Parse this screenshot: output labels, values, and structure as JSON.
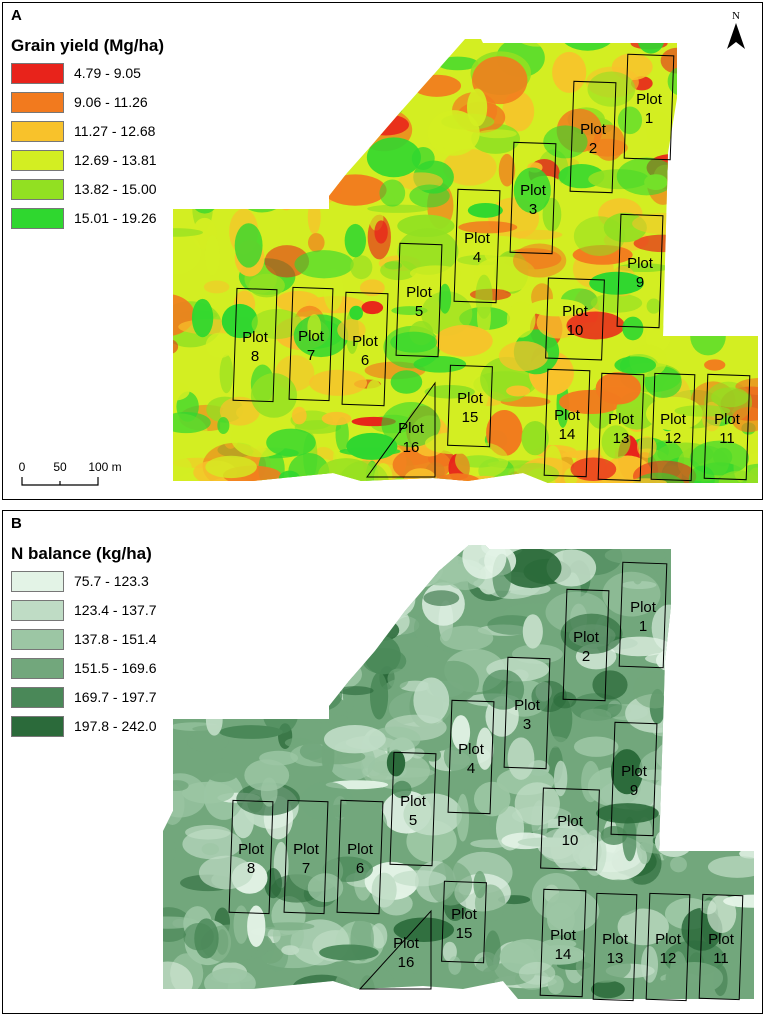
{
  "panels": [
    {
      "id": "A",
      "letter": "A",
      "legend_title": "Grain yield (Mg/ha)",
      "legend": [
        {
          "range": "4.79 - 9.05",
          "color": "#e8231b"
        },
        {
          "range": "9.06 - 11.26",
          "color": "#f27a1e"
        },
        {
          "range": "11.27 - 12.68",
          "color": "#f8c22b"
        },
        {
          "range": "12.69 - 13.81",
          "color": "#d3ee22"
        },
        {
          "range": "13.82 - 15.00",
          "color": "#92e022"
        },
        {
          "range": "15.01 - 19.26",
          "color": "#2fd72f"
        }
      ],
      "north_label": "N",
      "scale_labels": [
        "0",
        "50",
        "100 m"
      ]
    },
    {
      "id": "B",
      "letter": "B",
      "legend_title": "N balance (kg/ha)",
      "legend": [
        {
          "range": "75.7 - 123.3",
          "color": "#e3f3e6"
        },
        {
          "range": "123.4 - 137.7",
          "color": "#bfdcc5"
        },
        {
          "range": "137.8 - 151.4",
          "color": "#9cc6a4"
        },
        {
          "range": "151.5 - 169.6",
          "color": "#72a77c"
        },
        {
          "range": "169.7 - 197.7",
          "color": "#4a8858"
        },
        {
          "range": "197.8 - 242.0",
          "color": "#2b6a3a"
        }
      ]
    }
  ],
  "plot_word": "Plot",
  "plots": [
    "1",
    "2",
    "3",
    "4",
    "5",
    "6",
    "7",
    "8",
    "9",
    "10",
    "11",
    "12",
    "13",
    "14",
    "15",
    "16"
  ]
}
